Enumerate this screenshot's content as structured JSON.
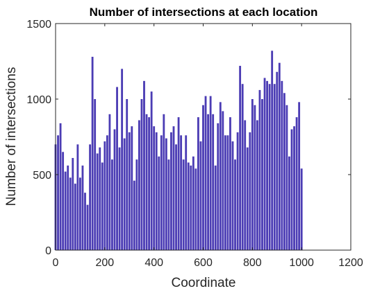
{
  "chart_data": {
    "type": "bar",
    "title": "Number of intersections at each location",
    "xlabel": "Coordinate",
    "ylabel": "Number of intersections",
    "xlim": [
      0,
      1200
    ],
    "ylim": [
      0,
      1500
    ],
    "xticks": [
      0,
      200,
      400,
      600,
      800,
      1000,
      1200
    ],
    "yticks": [
      0,
      500,
      1000,
      1500
    ],
    "xtick_labels": [
      "0",
      "200",
      "400",
      "600",
      "800",
      "1000",
      "1200"
    ],
    "ytick_labels": [
      "0",
      "500",
      "1000",
      "1500"
    ],
    "grid": false,
    "bar_color": "#4b3cb4",
    "x": [
      0,
      10,
      20,
      30,
      40,
      50,
      60,
      70,
      80,
      90,
      100,
      110,
      120,
      130,
      140,
      150,
      160,
      170,
      180,
      190,
      200,
      210,
      220,
      230,
      240,
      250,
      260,
      270,
      280,
      290,
      300,
      310,
      320,
      330,
      340,
      350,
      360,
      370,
      380,
      390,
      400,
      410,
      420,
      430,
      440,
      450,
      460,
      470,
      480,
      490,
      500,
      510,
      520,
      530,
      540,
      550,
      560,
      570,
      580,
      590,
      600,
      610,
      620,
      630,
      640,
      650,
      660,
      670,
      680,
      690,
      700,
      710,
      720,
      730,
      740,
      750,
      760,
      770,
      780,
      790,
      800,
      810,
      820,
      830,
      840,
      850,
      860,
      870,
      880,
      890,
      900,
      910,
      920,
      930,
      940,
      950,
      960,
      970,
      980,
      990,
      1000
    ],
    "values": [
      700,
      760,
      840,
      650,
      520,
      560,
      480,
      610,
      440,
      700,
      480,
      560,
      380,
      300,
      700,
      1280,
      1000,
      640,
      680,
      580,
      720,
      760,
      900,
      600,
      800,
      1080,
      680,
      1200,
      740,
      1000,
      780,
      820,
      460,
      600,
      860,
      1000,
      1120,
      900,
      880,
      1050,
      820,
      780,
      620,
      760,
      900,
      740,
      600,
      780,
      820,
      700,
      880,
      760,
      600,
      760,
      580,
      560,
      620,
      540,
      880,
      720,
      960,
      1020,
      900,
      1020,
      900,
      560,
      840,
      980,
      920,
      760,
      760,
      880,
      720,
      600,
      780,
      1220,
      1100,
      860,
      680,
      780,
      1000,
      960,
      860,
      1060,
      1000,
      1140,
      1120,
      1100,
      1320,
      1100,
      1180,
      1240,
      1120,
      1040,
      960,
      620,
      800,
      820,
      880,
      980,
      540
    ]
  }
}
